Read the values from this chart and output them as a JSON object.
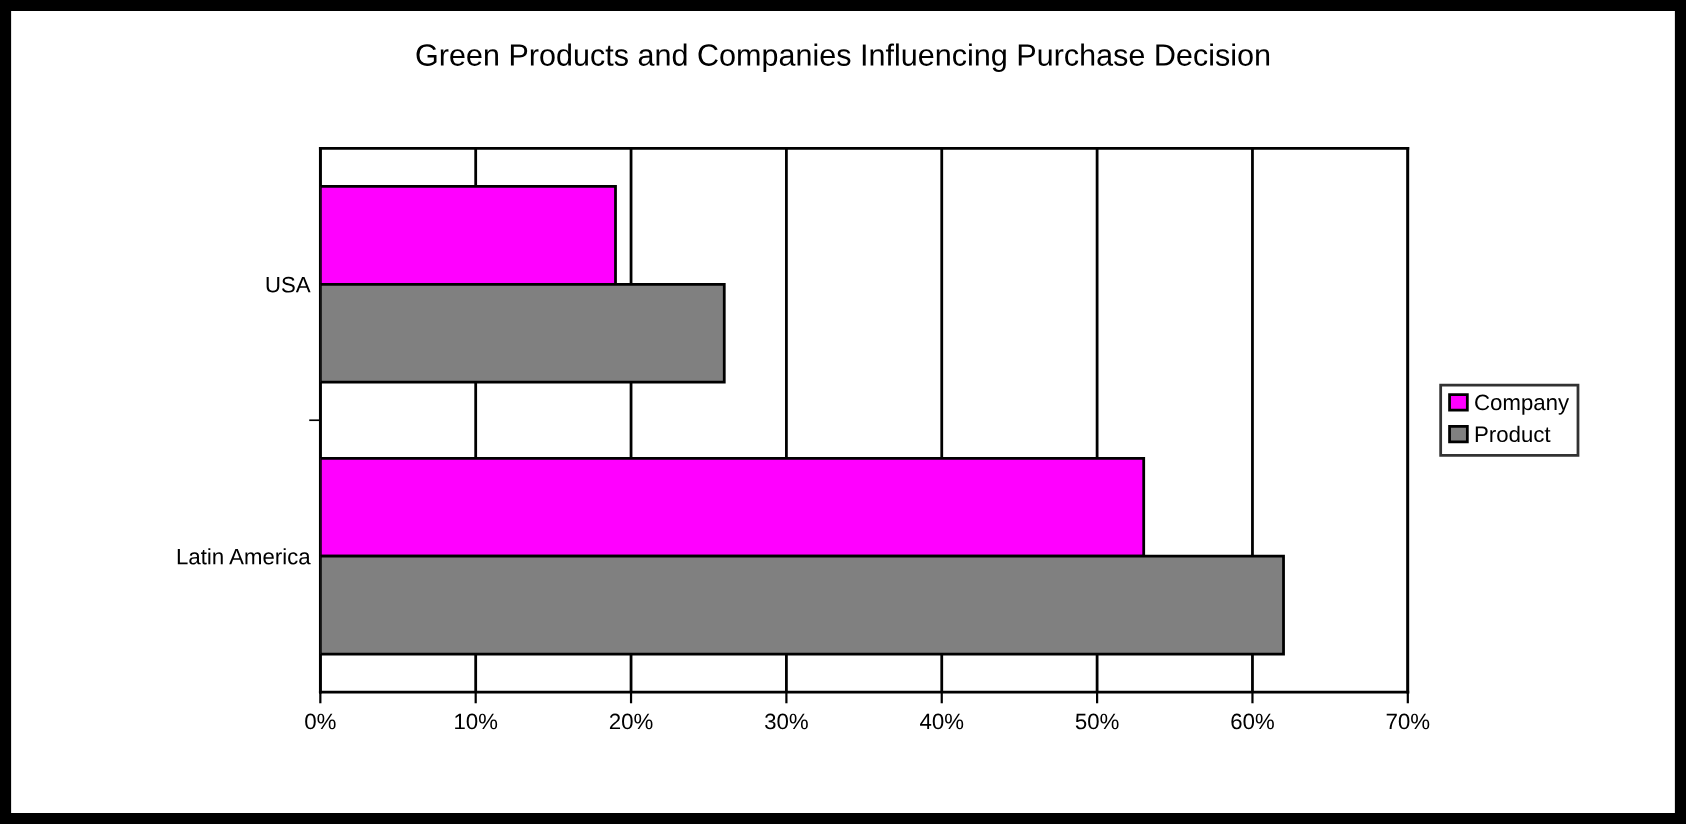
{
  "chart_data": {
    "type": "bar",
    "orientation": "horizontal",
    "title": "Green Products and Companies Influencing Purchase Decision",
    "categories": [
      "USA",
      "Latin America"
    ],
    "series": [
      {
        "name": "Company",
        "color": "#ff00ff",
        "values": [
          19,
          53
        ]
      },
      {
        "name": "Product",
        "color": "#808080",
        "values": [
          26,
          62
        ]
      }
    ],
    "xlim": [
      0,
      70
    ],
    "xticks": [
      {
        "value": 0,
        "label": "0%"
      },
      {
        "value": 10,
        "label": "10%"
      },
      {
        "value": 20,
        "label": "20%"
      },
      {
        "value": 30,
        "label": "30%"
      },
      {
        "value": 40,
        "label": "40%"
      },
      {
        "value": 50,
        "label": "50%"
      },
      {
        "value": 60,
        "label": "60%"
      },
      {
        "value": 70,
        "label": "70%"
      }
    ],
    "grid": "x",
    "legend": "right"
  }
}
